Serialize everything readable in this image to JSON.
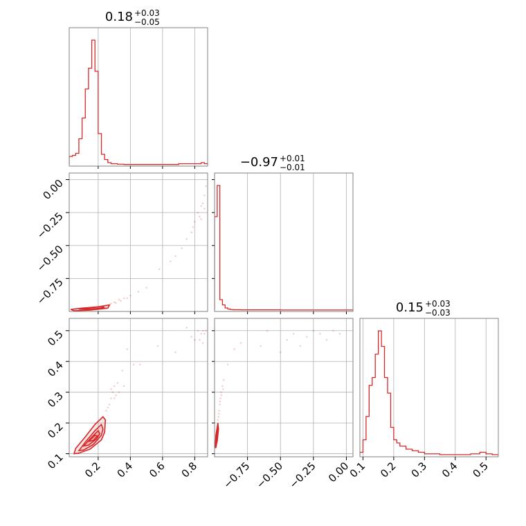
{
  "chart_data": {
    "type": "corner",
    "color": "#d62728",
    "grid": true,
    "params": [
      {
        "title": {
          "main": "0.18",
          "sup": "+0.03",
          "sub": "−0.05"
        },
        "range": [
          0.02,
          0.88
        ],
        "ticks": [
          0.2,
          0.4,
          0.6,
          0.8
        ],
        "tick_labels": [
          "0.2",
          "0.4",
          "0.6",
          "0.8"
        ]
      },
      {
        "title": {
          "main": "−0.97",
          "sup": "+0.01",
          "sub": "−0.01"
        },
        "range": [
          -1.0,
          0.05
        ],
        "ticks": [
          -0.75,
          -0.5,
          -0.25,
          0.0
        ],
        "tick_labels": [
          "−0.75",
          "−0.50",
          "−0.25",
          "0.00"
        ]
      },
      {
        "title": {
          "main": "0.15",
          "sup": "+0.03",
          "sub": "−0.03"
        },
        "range": [
          0.09,
          0.54
        ],
        "ticks": [
          0.1,
          0.2,
          0.3,
          0.4,
          0.5
        ],
        "tick_labels": [
          "0.1",
          "0.2",
          "0.3",
          "0.4",
          "0.5"
        ]
      }
    ],
    "histograms": [
      {
        "param": 0,
        "bin_edges": [
          0.02,
          0.04,
          0.06,
          0.08,
          0.1,
          0.12,
          0.14,
          0.16,
          0.18,
          0.2,
          0.22,
          0.24,
          0.26,
          0.28,
          0.3,
          0.32,
          0.36,
          0.5,
          0.7,
          0.76,
          0.8,
          0.84,
          0.86,
          0.88
        ],
        "counts": [
          8,
          9,
          11,
          25,
          45,
          73,
          93,
          120,
          90,
          30,
          10,
          5,
          2,
          1,
          1,
          0.5,
          0.2,
          0.2,
          1,
          1,
          1,
          2,
          1
        ]
      },
      {
        "param": 1,
        "bin_edges": [
          -1.0,
          -0.98,
          -0.96,
          -0.94,
          -0.92,
          -0.9,
          -0.88,
          -0.86,
          -0.8,
          -0.5,
          0.05
        ],
        "counts": [
          90,
          120,
          10,
          5,
          2,
          1,
          0.5,
          0.3,
          0.2,
          0.1
        ]
      },
      {
        "param": 2,
        "bin_edges": [
          0.09,
          0.1,
          0.11,
          0.12,
          0.13,
          0.14,
          0.15,
          0.16,
          0.17,
          0.18,
          0.19,
          0.2,
          0.21,
          0.22,
          0.24,
          0.26,
          0.28,
          0.3,
          0.35,
          0.45,
          0.48,
          0.5,
          0.52,
          0.54
        ],
        "counts": [
          2,
          10,
          25,
          45,
          50,
          65,
          80,
          70,
          50,
          40,
          18,
          10,
          8,
          6,
          4,
          3,
          2,
          1,
          0.5,
          1,
          2,
          1,
          0.5
        ]
      }
    ],
    "contour_levels": [
      {
        "pair": [
          0,
          1
        ],
        "rings": [
          [
            [
              0.03,
              -0.985
            ],
            [
              0.1,
              -0.975
            ],
            [
              0.2,
              -0.965
            ],
            [
              0.27,
              -0.95
            ],
            [
              0.26,
              -0.975
            ],
            [
              0.15,
              -0.99
            ],
            [
              0.05,
              -0.995
            ],
            [
              0.03,
              -0.985
            ]
          ],
          [
            [
              0.08,
              -0.982
            ],
            [
              0.15,
              -0.975
            ],
            [
              0.22,
              -0.962
            ],
            [
              0.24,
              -0.97
            ],
            [
              0.15,
              -0.985
            ],
            [
              0.08,
              -0.982
            ]
          ]
        ]
      },
      {
        "pair": [
          0,
          2
        ],
        "rings": [
          [
            [
              0.05,
              0.1
            ],
            [
              0.06,
              0.117
            ],
            [
              0.12,
              0.155
            ],
            [
              0.18,
              0.195
            ],
            [
              0.23,
              0.22
            ],
            [
              0.245,
              0.21
            ],
            [
              0.24,
              0.17
            ],
            [
              0.22,
              0.145
            ],
            [
              0.15,
              0.115
            ],
            [
              0.08,
              0.102
            ],
            [
              0.05,
              0.1
            ]
          ],
          [
            [
              0.08,
              0.11
            ],
            [
              0.12,
              0.138
            ],
            [
              0.18,
              0.175
            ],
            [
              0.22,
              0.195
            ],
            [
              0.23,
              0.18
            ],
            [
              0.22,
              0.16
            ],
            [
              0.17,
              0.13
            ],
            [
              0.11,
              0.112
            ],
            [
              0.08,
              0.11
            ]
          ],
          [
            [
              0.11,
              0.125
            ],
            [
              0.15,
              0.148
            ],
            [
              0.2,
              0.175
            ],
            [
              0.21,
              0.165
            ],
            [
              0.19,
              0.148
            ],
            [
              0.14,
              0.128
            ],
            [
              0.11,
              0.125
            ]
          ],
          [
            [
              0.14,
              0.14
            ],
            [
              0.18,
              0.16
            ],
            [
              0.195,
              0.158
            ],
            [
              0.17,
              0.143
            ],
            [
              0.14,
              0.14
            ]
          ]
        ]
      },
      {
        "pair": [
          1,
          2
        ],
        "rings": [
          [
            [
              -0.995,
              0.12
            ],
            [
              -0.99,
              0.16
            ],
            [
              -0.975,
              0.2
            ],
            [
              -0.97,
              0.18
            ],
            [
              -0.98,
              0.14
            ],
            [
              -0.99,
              0.12
            ],
            [
              -0.995,
              0.12
            ]
          ],
          [
            [
              -0.99,
              0.135
            ],
            [
              -0.985,
              0.16
            ],
            [
              -0.978,
              0.185
            ],
            [
              -0.976,
              0.165
            ],
            [
              -0.985,
              0.14
            ],
            [
              -0.99,
              0.135
            ]
          ]
        ]
      }
    ],
    "samples": [
      {
        "pair": [
          0,
          1
        ],
        "points": [
          [
            0.25,
            -0.96
          ],
          [
            0.28,
            -0.94
          ],
          [
            0.3,
            -0.93
          ],
          [
            0.33,
            -0.91
          ],
          [
            0.36,
            -0.9
          ],
          [
            0.4,
            -0.88
          ],
          [
            0.45,
            -0.85
          ],
          [
            0.5,
            -0.82
          ],
          [
            0.58,
            -0.68
          ],
          [
            0.65,
            -0.62
          ],
          [
            0.68,
            -0.58
          ],
          [
            0.72,
            -0.52
          ],
          [
            0.75,
            -0.45
          ],
          [
            0.78,
            -0.4
          ],
          [
            0.8,
            -0.32
          ],
          [
            0.82,
            -0.25
          ],
          [
            0.84,
            -0.2
          ],
          [
            0.85,
            -0.18
          ],
          [
            0.86,
            -0.12
          ],
          [
            0.87,
            -0.05
          ],
          [
            0.83,
            -0.28
          ],
          [
            0.79,
            -0.36
          ],
          [
            0.84,
            -0.3
          ],
          [
            0.86,
            -0.22
          ],
          [
            0.27,
            -0.955
          ],
          [
            0.31,
            -0.935
          ],
          [
            0.34,
            -0.92
          ],
          [
            0.38,
            -0.9
          ]
        ]
      },
      {
        "pair": [
          0,
          2
        ],
        "points": [
          [
            0.25,
            0.24
          ],
          [
            0.27,
            0.26
          ],
          [
            0.28,
            0.28
          ],
          [
            0.29,
            0.3
          ],
          [
            0.3,
            0.32
          ],
          [
            0.32,
            0.33
          ],
          [
            0.35,
            0.37
          ],
          [
            0.38,
            0.44
          ],
          [
            0.42,
            0.39
          ],
          [
            0.46,
            0.39
          ],
          [
            0.57,
            0.45
          ],
          [
            0.68,
            0.43
          ],
          [
            0.75,
            0.51
          ],
          [
            0.78,
            0.48
          ],
          [
            0.8,
            0.47
          ],
          [
            0.82,
            0.5
          ],
          [
            0.84,
            0.49
          ],
          [
            0.85,
            0.5
          ],
          [
            0.86,
            0.49
          ],
          [
            0.87,
            0.5
          ],
          [
            0.83,
            0.47
          ],
          [
            0.85,
            0.46
          ],
          [
            0.26,
            0.25
          ],
          [
            0.3,
            0.28
          ],
          [
            0.33,
            0.3
          ],
          [
            0.36,
            0.32
          ],
          [
            0.28,
            0.31
          ],
          [
            0.31,
            0.29
          ]
        ]
      },
      {
        "pair": [
          1,
          2
        ],
        "points": [
          [
            -0.97,
            0.22
          ],
          [
            -0.965,
            0.24
          ],
          [
            -0.96,
            0.26
          ],
          [
            -0.955,
            0.28
          ],
          [
            -0.95,
            0.3
          ],
          [
            -0.94,
            0.32
          ],
          [
            -0.93,
            0.34
          ],
          [
            -0.9,
            0.39
          ],
          [
            -0.85,
            0.44
          ],
          [
            -0.8,
            0.46
          ],
          [
            -0.65,
            0.45
          ],
          [
            -0.5,
            0.43
          ],
          [
            -0.45,
            0.47
          ],
          [
            -0.4,
            0.49
          ],
          [
            -0.3,
            0.48
          ],
          [
            -0.25,
            0.5
          ],
          [
            -0.2,
            0.49
          ],
          [
            -0.1,
            0.5
          ],
          [
            -0.05,
            0.49
          ],
          [
            -0.15,
            0.47
          ],
          [
            -0.35,
            0.45
          ],
          [
            -0.6,
            0.5
          ],
          [
            -0.975,
            0.21
          ],
          [
            -0.968,
            0.23
          ],
          [
            -0.958,
            0.27
          ],
          [
            -0.948,
            0.29
          ],
          [
            -0.935,
            0.31
          ]
        ]
      }
    ]
  }
}
